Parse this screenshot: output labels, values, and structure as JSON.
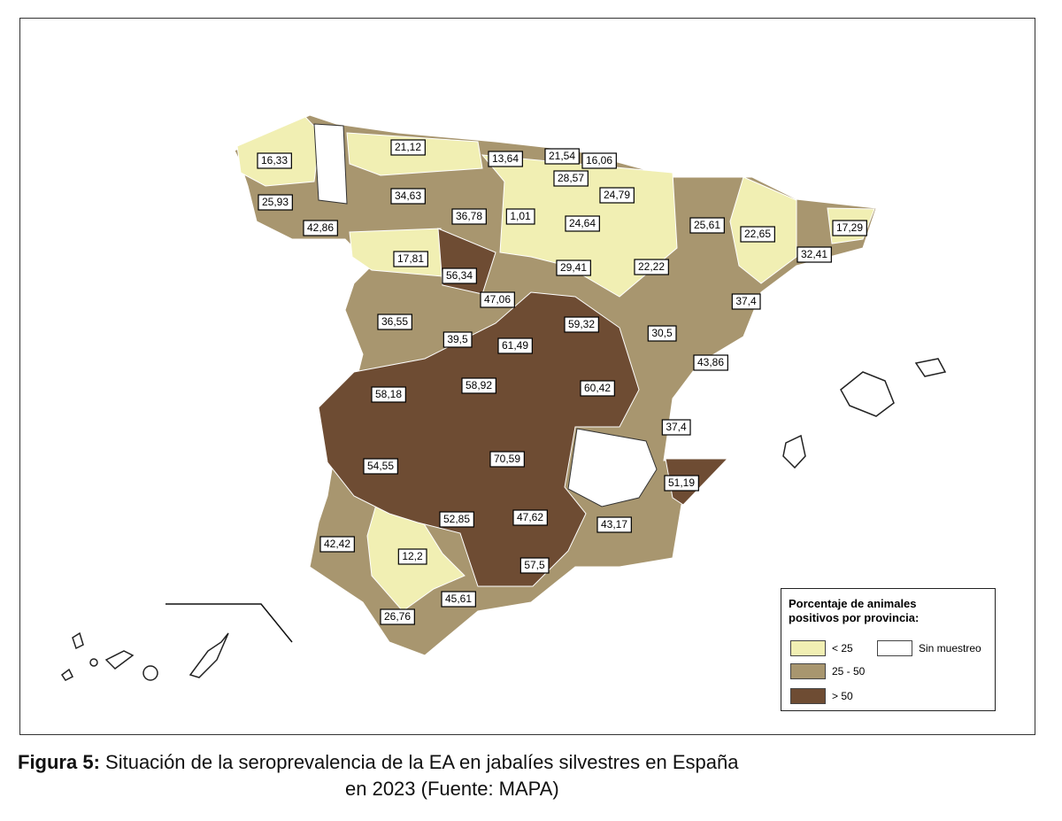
{
  "map": {
    "labels": [
      "16,33",
      "21,12",
      "13,64",
      "21,54",
      "16,06",
      "28,57",
      "25,93",
      "34,63",
      "24,79",
      "36,78",
      "1,01",
      "24,64",
      "25,61",
      "22,65",
      "17,29",
      "42,86",
      "17,81",
      "56,34",
      "29,41",
      "22,22",
      "32,41",
      "47,06",
      "37,4",
      "36,55",
      "59,32",
      "39,5",
      "61,49",
      "30,5",
      "43,86",
      "58,18",
      "58,92",
      "60,42",
      "37,4",
      "54,55",
      "70,59",
      "51,19",
      "52,85",
      "47,62",
      "43,17",
      "42,42",
      "12,2",
      "57,5",
      "45,61",
      "26,76"
    ]
  },
  "legend": {
    "title_lines": [
      "Porcentaje de animales",
      "positivos por provincia:"
    ],
    "items": [
      {
        "label": "< 25",
        "color": "#f1efb3"
      },
      {
        "label": "25 - 50",
        "color": "#a8966f"
      },
      {
        "label": "> 50",
        "color": "#6e4c33"
      },
      {
        "label": "Sin muestreo",
        "color": "#ffffff"
      }
    ]
  },
  "caption": {
    "figure": "Figura 5:",
    "line1": "Situación de la seroprevalencia de la EA en jabalíes silvestres en España",
    "line2": "en 2023 (Fuente: MAPA)"
  }
}
